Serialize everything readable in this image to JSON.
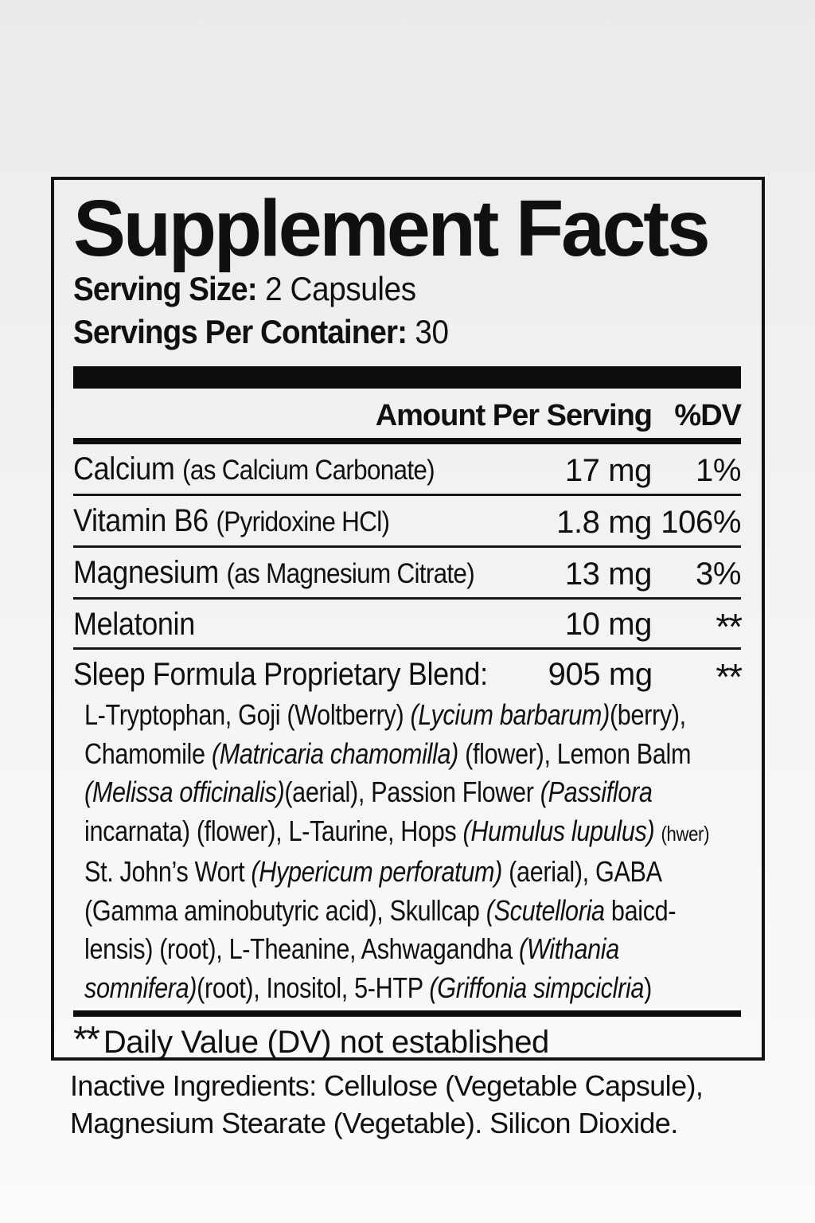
{
  "label": {
    "title": "Supplement Facts",
    "serving_size_label": "Serving Size:",
    "serving_size_value": " 2 Capsules",
    "servings_label": "Servings Per Container:",
    "servings_value": " 30",
    "header": {
      "amount": "Amount Per Serving",
      "dv": "%DV"
    },
    "nutrients": [
      {
        "name": "Calcium ",
        "detail": "(as Calcium Carbonate)",
        "amount": "17 mg",
        "dv": "1%"
      },
      {
        "name": "Vitamin B6 ",
        "detail": "(Pyridoxine HCl)",
        "amount": "1.8 mg",
        "dv": "106%"
      },
      {
        "name": "Magnesium ",
        "detail": "(as Magnesium Citrate)",
        "amount": "13 mg",
        "dv": "3%"
      },
      {
        "name": "Melatonin",
        "detail": "",
        "amount": "10 mg",
        "dv": "**"
      }
    ],
    "blend": {
      "name": "Sleep Formula Proprietary Blend:",
      "amount": "905 mg",
      "dv": "**",
      "lines": [
        [
          {
            "t": "L-Tryptophan, Goji (Woltberry) "
          },
          {
            "t": "(Lycium barbarum)",
            "i": 1
          },
          {
            "t": "(berry),"
          }
        ],
        [
          {
            "t": "Chamomile "
          },
          {
            "t": "(Matricaria chamomilla)",
            "i": 1
          },
          {
            "t": " (flower), Lemon Balm"
          }
        ],
        [
          {
            "t": "(Melissa officinalis)",
            "i": 1
          },
          {
            "t": "(aerial), Passion Flower "
          },
          {
            "t": "(Passiflora",
            "i": 1
          }
        ],
        [
          {
            "t": "incarnata) (flower), L-Taurine, Hops "
          },
          {
            "t": "(Humulus lupulus)",
            "i": 1
          },
          {
            "t": " "
          },
          {
            "t": "(hwer)",
            "s": 1
          }
        ],
        [
          {
            "t": "St. John’s Wort "
          },
          {
            "t": "(Hypericum perforatum)",
            "i": 1
          },
          {
            "t": " (aerial), GABA"
          }
        ],
        [
          {
            "t": "(Gamma aminobutyric acid), Skullcap "
          },
          {
            "t": "(Scutelloria",
            "i": 1
          },
          {
            "t": " baicd-"
          }
        ],
        [
          {
            "t": "lensis) (root), L-Theanine, Ashwagandha "
          },
          {
            "t": "(Withania",
            "i": 1
          }
        ],
        [
          {
            "t": "somnifera)",
            "i": 1
          },
          {
            "t": "(root), Inositol, 5-HTP "
          },
          {
            "t": "(Griffonia simpciclria",
            "i": 1
          },
          {
            "t": ")"
          }
        ]
      ]
    },
    "footnote": {
      "stars": "**",
      "text": "Daily Value (DV) not established"
    }
  },
  "inactive": {
    "line1": "Inactive Ingredients: Cellulose (Vegetable Capsule),",
    "line2": "Magnesium Stearate (Vegetable). Silicon Dioxide."
  }
}
